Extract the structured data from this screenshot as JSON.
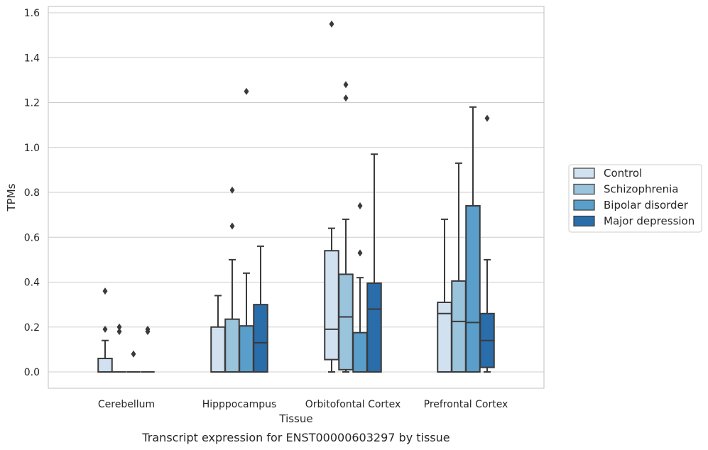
{
  "caption": "Transcript expression for ENST00000603297 by tissue",
  "chart_data": {
    "type": "box",
    "xlabel": "Tissue",
    "ylabel": "TPMs",
    "ylim": [
      -0.075,
      1.63
    ],
    "yticks": [
      "0.0",
      "0.2",
      "0.4",
      "0.6",
      "0.8",
      "1.0",
      "1.2",
      "1.4",
      "1.6"
    ],
    "ytick_values": [
      0,
      0.2,
      0.4,
      0.6,
      0.8,
      1.0,
      1.2,
      1.4,
      1.6
    ],
    "grid": "horizontal",
    "legend_position": "right",
    "categories": [
      "Cerebellum",
      "Hipppocampus",
      "Orbitofontal Cortex",
      "Prefrontal Cortex"
    ],
    "series": [
      {
        "name": "Control",
        "color": "#d1e1f0",
        "boxes": [
          {
            "min": 0,
            "q1": 0,
            "median": 0,
            "q3": 0.06,
            "max": 0.14,
            "outliers": [
              0.19,
              0.36
            ]
          },
          {
            "min": 0,
            "q1": 0,
            "median": 0,
            "q3": 0.2,
            "max": 0.34,
            "outliers": []
          },
          {
            "min": 0,
            "q1": 0.055,
            "median": 0.19,
            "q3": 0.54,
            "max": 0.64,
            "outliers": [
              1.55
            ]
          },
          {
            "min": 0,
            "q1": 0,
            "median": 0.26,
            "q3": 0.31,
            "max": 0.68,
            "outliers": []
          }
        ]
      },
      {
        "name": "Schizophrenia",
        "color": "#9ac3dc",
        "boxes": [
          {
            "min": 0,
            "q1": 0,
            "median": 0,
            "q3": 0,
            "max": 0,
            "outliers": [
              0.18,
              0.2
            ]
          },
          {
            "min": 0,
            "q1": 0,
            "median": 0,
            "q3": 0.235,
            "max": 0.5,
            "outliers": [
              0.65,
              0.81
            ]
          },
          {
            "min": 0,
            "q1": 0.01,
            "median": 0.245,
            "q3": 0.435,
            "max": 0.68,
            "outliers": [
              1.22,
              1.28
            ]
          },
          {
            "min": 0,
            "q1": 0,
            "median": 0.225,
            "q3": 0.405,
            "max": 0.93,
            "outliers": []
          }
        ]
      },
      {
        "name": "Bipolar disorder",
        "color": "#5a9fcb",
        "boxes": [
          {
            "min": 0,
            "q1": 0,
            "median": 0,
            "q3": 0,
            "max": 0,
            "outliers": [
              0.08
            ]
          },
          {
            "min": 0,
            "q1": 0,
            "median": 0,
            "q3": 0.205,
            "max": 0.44,
            "outliers": [
              1.25
            ]
          },
          {
            "min": 0,
            "q1": 0,
            "median": 0,
            "q3": 0.175,
            "max": 0.42,
            "outliers": [
              0.53,
              0.74
            ]
          },
          {
            "min": 0,
            "q1": 0,
            "median": 0.22,
            "q3": 0.74,
            "max": 1.18,
            "outliers": []
          }
        ]
      },
      {
        "name": "Major depression",
        "color": "#2a6dab",
        "boxes": [
          {
            "min": 0,
            "q1": 0,
            "median": 0,
            "q3": 0,
            "max": 0,
            "outliers": [
              0.18,
              0.19
            ]
          },
          {
            "min": 0,
            "q1": 0,
            "median": 0.13,
            "q3": 0.3,
            "max": 0.56,
            "outliers": []
          },
          {
            "min": 0,
            "q1": 0,
            "median": 0.28,
            "q3": 0.395,
            "max": 0.97,
            "outliers": []
          },
          {
            "min": 0,
            "q1": 0.02,
            "median": 0.14,
            "q3": 0.26,
            "max": 0.5,
            "outliers": [
              1.13
            ]
          }
        ]
      }
    ]
  }
}
